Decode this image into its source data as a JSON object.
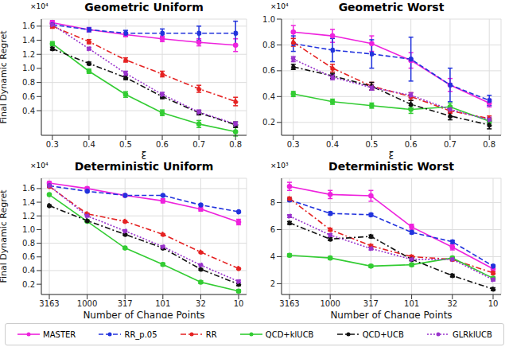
{
  "chart_data": [
    {
      "type": "line",
      "title": "Geometric Uniform",
      "x_label": "ξ",
      "y_label": "Final Dynamic Regret",
      "annotations": [
        "×10⁴"
      ],
      "x": [
        0.3,
        0.4,
        0.5,
        0.6,
        0.7,
        0.8
      ],
      "xlim": [
        0.27,
        0.83
      ],
      "xticks": [
        0.3,
        0.4,
        0.5,
        0.6,
        0.7,
        0.8
      ],
      "ylim": [
        0.05,
        1.7
      ],
      "yticks": [
        0.4,
        0.6,
        0.8,
        {
          "value": 1,
          "label": "1.0"
        },
        1.2,
        1.4,
        1.6
      ],
      "grid": true,
      "legend": "bottom",
      "series": [
        {
          "name": "MASTER",
          "color": "#ee22dd",
          "line_style": "solid",
          "marker": "circle",
          "values": [
            1.65,
            1.55,
            1.48,
            1.42,
            1.37,
            1.33
          ],
          "errors": [
            0.03,
            0.03,
            0.03,
            0.04,
            0.05,
            0.09
          ]
        },
        {
          "name": "RR_p.05",
          "color": "#2233dd",
          "line_style": "dashed",
          "marker": "circle",
          "values": [
            1.62,
            1.55,
            1.5,
            1.5,
            1.5,
            1.5
          ],
          "errors": [
            0.02,
            0.03,
            0.04,
            0.06,
            0.1,
            0.17
          ]
        },
        {
          "name": "RR",
          "color": "#e52222",
          "line_style": "dashdot",
          "marker": "circle",
          "values": [
            1.6,
            1.38,
            1.12,
            0.92,
            0.71,
            0.53
          ],
          "errors": [
            0.03,
            0.03,
            0.03,
            0.04,
            0.05,
            0.06
          ]
        },
        {
          "name": "QCD+klUCB",
          "color": "#33cc33",
          "line_style": "solid",
          "marker": "circle",
          "values": [
            1.35,
            0.96,
            0.63,
            0.37,
            0.21,
            0.1
          ],
          "errors": [
            0.03,
            0.03,
            0.04,
            0.04,
            0.05,
            0.06
          ]
        },
        {
          "name": "QCD+UCB",
          "color": "#111111",
          "line_style": "dashdot",
          "marker": "circle",
          "values": [
            1.28,
            1.07,
            0.87,
            0.6,
            0.37,
            0.2
          ],
          "errors": [
            0.02,
            0.02,
            0.03,
            0.03,
            0.03,
            0.04
          ]
        },
        {
          "name": "GLRklUCB",
          "color": "#9933cc",
          "line_style": "dotted",
          "marker": "circle",
          "values": [
            1.62,
            1.28,
            0.93,
            0.63,
            0.38,
            0.21
          ],
          "errors": [
            0.02,
            0.02,
            0.03,
            0.03,
            0.03,
            0.03
          ]
        }
      ]
    },
    {
      "type": "line",
      "title": "Geometric Worst",
      "x_label": "ξ",
      "annotations": [
        "×10⁴"
      ],
      "x": [
        0.3,
        0.4,
        0.5,
        0.6,
        0.7,
        0.8
      ],
      "xlim": [
        0.27,
        0.83
      ],
      "xticks": [
        0.3,
        0.4,
        0.5,
        0.6,
        0.7,
        0.8
      ],
      "ylim": [
        0.1,
        1.0
      ],
      "yticks": [
        0.2,
        0.4,
        0.6,
        0.8,
        {
          "value": 1,
          "label": "1.0"
        }
      ],
      "grid": true,
      "legend": "bottom",
      "series": [
        {
          "name": "MASTER",
          "color": "#ee22dd",
          "line_style": "solid",
          "marker": "circle",
          "values": [
            0.9,
            0.87,
            0.81,
            0.68,
            0.49,
            0.35
          ],
          "errors": [
            0.05,
            0.05,
            0.06,
            0.06,
            0.05,
            0.03
          ]
        },
        {
          "name": "RR_p.05",
          "color": "#2233dd",
          "line_style": "dashed",
          "marker": "circle",
          "values": [
            0.81,
            0.76,
            0.73,
            0.69,
            0.49,
            0.37
          ],
          "errors": [
            0.06,
            0.09,
            0.11,
            0.17,
            0.13,
            0.04
          ]
        },
        {
          "name": "RR",
          "color": "#e52222",
          "line_style": "dashdot",
          "marker": "circle",
          "values": [
            0.82,
            0.62,
            0.48,
            0.4,
            0.29,
            0.23
          ],
          "errors": [
            0.03,
            0.03,
            0.03,
            0.03,
            0.02,
            0.02
          ]
        },
        {
          "name": "QCD+klUCB",
          "color": "#33cc33",
          "line_style": "solid",
          "marker": "circle",
          "values": [
            0.42,
            0.36,
            0.33,
            0.3,
            0.32,
            0.21
          ],
          "errors": [
            0.02,
            0.02,
            0.02,
            0.03,
            0.03,
            0.02
          ]
        },
        {
          "name": "QCD+UCB",
          "color": "#111111",
          "line_style": "dashdot",
          "marker": "circle",
          "values": [
            0.63,
            0.56,
            0.48,
            0.34,
            0.25,
            0.18
          ],
          "errors": [
            0.02,
            0.02,
            0.03,
            0.03,
            0.03,
            0.03
          ]
        },
        {
          "name": "GLRklUCB",
          "color": "#9933cc",
          "line_style": "dotted",
          "marker": "circle",
          "values": [
            0.69,
            0.55,
            0.47,
            0.41,
            0.3,
            0.22
          ],
          "errors": [
            0.02,
            0.02,
            0.02,
            0.02,
            0.02,
            0.02
          ]
        }
      ]
    },
    {
      "type": "line",
      "title": "Deterministic Uniform",
      "x_label": "Number of Change Points",
      "y_label": "Final Dynamic Regret",
      "annotations": [
        "×10⁴"
      ],
      "categories": [
        "3163",
        "1000",
        "317",
        "101",
        "32",
        "10"
      ],
      "ylim": [
        0.05,
        1.75
      ],
      "yticks": [
        0.2,
        0.4,
        0.6,
        0.8,
        {
          "value": 1,
          "label": "1.0"
        },
        1.2,
        1.4,
        1.6
      ],
      "grid": true,
      "legend": "bottom",
      "series": [
        {
          "name": "MASTER",
          "color": "#ee22dd",
          "line_style": "solid",
          "marker": "circle",
          "values": [
            1.68,
            1.6,
            1.5,
            1.42,
            1.3,
            1.11
          ],
          "errors": [
            0.02,
            0.02,
            0.02,
            0.03,
            0.03,
            0.04
          ]
        },
        {
          "name": "RR_p.05",
          "color": "#2233dd",
          "line_style": "dashed",
          "marker": "circle",
          "values": [
            1.64,
            1.56,
            1.5,
            1.5,
            1.36,
            1.26
          ],
          "errors": [
            0.01,
            0.01,
            0.01,
            0.01,
            0.01,
            0.01
          ]
        },
        {
          "name": "RR",
          "color": "#e52222",
          "line_style": "dashdot",
          "marker": "circle",
          "values": [
            1.63,
            1.23,
            1.12,
            0.93,
            0.67,
            0.43
          ],
          "errors": [
            0.01,
            0.01,
            0.01,
            0.01,
            0.01,
            0.01
          ]
        },
        {
          "name": "QCD+klUCB",
          "color": "#33cc33",
          "line_style": "solid",
          "marker": "circle",
          "values": [
            1.51,
            1.12,
            0.73,
            0.49,
            0.23,
            0.1
          ],
          "errors": [
            0.01,
            0.01,
            0.01,
            0.02,
            0.02,
            0.02
          ]
        },
        {
          "name": "QCD+UCB",
          "color": "#111111",
          "line_style": "dashdot",
          "marker": "circle",
          "values": [
            1.35,
            1.13,
            0.93,
            0.73,
            0.42,
            0.2
          ],
          "errors": [
            0.01,
            0.01,
            0.01,
            0.01,
            0.01,
            0.02
          ]
        },
        {
          "name": "GLRklUCB",
          "color": "#9933cc",
          "line_style": "dotted",
          "marker": "circle",
          "values": [
            1.64,
            1.2,
            0.98,
            0.75,
            0.48,
            0.24
          ],
          "errors": [
            0.01,
            0.01,
            0.01,
            0.01,
            0.01,
            0.02
          ]
        }
      ]
    },
    {
      "type": "line",
      "title": "Deterministic Worst",
      "x_label": "Number of Change Points",
      "annotations": [
        "×10³"
      ],
      "categories": [
        "3163",
        "1000",
        "317",
        "101",
        "32",
        "10"
      ],
      "ylim": [
        1.2,
        9.8
      ],
      "yticks": [
        2,
        4,
        6,
        8
      ],
      "grid": true,
      "legend": "bottom",
      "series": [
        {
          "name": "MASTER",
          "color": "#ee22dd",
          "line_style": "solid",
          "marker": "circle",
          "values": [
            9.2,
            8.6,
            8.5,
            6.2,
            4.7,
            3.1
          ],
          "errors": [
            0.3,
            0.3,
            0.4,
            0.2,
            0.2,
            0.2
          ]
        },
        {
          "name": "RR_p.05",
          "color": "#2233dd",
          "line_style": "dashed",
          "marker": "circle",
          "values": [
            8.2,
            7.2,
            7.1,
            5.8,
            5.1,
            3.3
          ],
          "errors": [
            0.1,
            0.1,
            0.1,
            0.1,
            0.1,
            0.1
          ]
        },
        {
          "name": "RR",
          "color": "#e52222",
          "line_style": "dashdot",
          "marker": "circle",
          "values": [
            8.3,
            6.0,
            4.8,
            4.0,
            3.8,
            2.8
          ],
          "errors": [
            0.1,
            0.1,
            0.1,
            0.1,
            0.1,
            0.1
          ]
        },
        {
          "name": "QCD+klUCB",
          "color": "#33cc33",
          "line_style": "solid",
          "marker": "circle",
          "values": [
            4.1,
            3.9,
            3.3,
            3.4,
            3.9,
            2.4
          ],
          "errors": [
            0.1,
            0.1,
            0.1,
            0.1,
            0.1,
            0.1
          ]
        },
        {
          "name": "QCD+UCB",
          "color": "#111111",
          "line_style": "dashdot",
          "marker": "circle",
          "values": [
            6.5,
            5.3,
            5.5,
            3.8,
            2.6,
            1.6
          ],
          "errors": [
            0.1,
            0.1,
            0.1,
            0.1,
            0.1,
            0.1
          ]
        },
        {
          "name": "GLRklUCB",
          "color": "#9933cc",
          "line_style": "dotted",
          "marker": "circle",
          "values": [
            7.0,
            5.6,
            4.6,
            3.8,
            3.8,
            2.3
          ],
          "errors": [
            0.1,
            0.1,
            0.1,
            0.1,
            0.1,
            0.1
          ]
        }
      ]
    }
  ]
}
